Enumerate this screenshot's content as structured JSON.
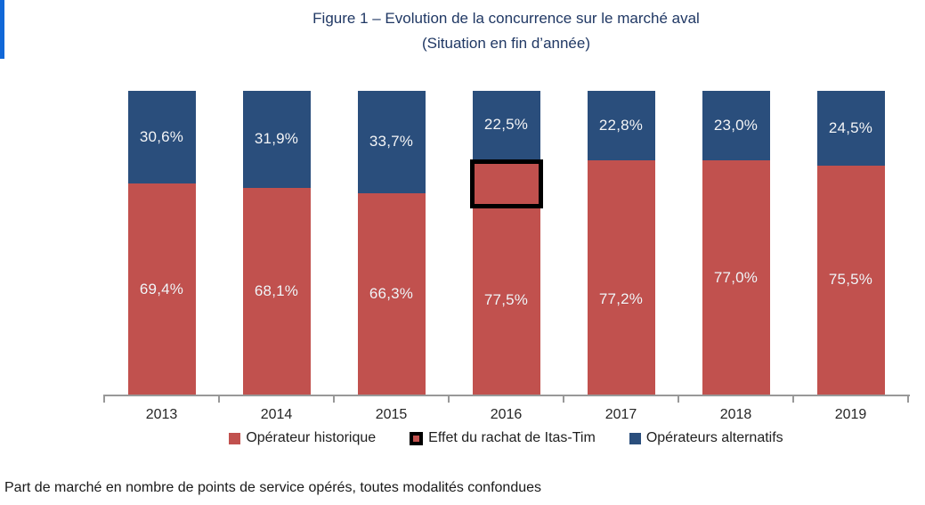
{
  "title": {
    "line1": "Figure 1 – Evolution de la concurrence sur le marché aval",
    "line2": "(Situation en fin d’année)"
  },
  "colors": {
    "historique_red": "#c1514e",
    "alternatifs_blue": "#2a4e7c",
    "annotation_black": "#000000",
    "title_navy": "#203864",
    "axis_gray": "#989898",
    "accent_blue": "#1168d8"
  },
  "chart_data": {
    "type": "bar",
    "stacked": true,
    "units": "%",
    "title": "Figure 1 – Evolution de la concurrence sur le marché aval (Situation en fin d’année)",
    "categories": [
      "2013",
      "2014",
      "2015",
      "2016",
      "2017",
      "2018",
      "2019"
    ],
    "series": [
      {
        "name": "Opérateur historique",
        "color": "#c1514e",
        "values": [
          69.4,
          68.1,
          66.3,
          77.5,
          77.2,
          77.0,
          75.5
        ],
        "labels": [
          "69,4%",
          "68,1%",
          "66,3%",
          "77,5%",
          "77,2%",
          "77,0%",
          "75,5%"
        ]
      },
      {
        "name": "Opérateurs alternatifs",
        "color": "#2a4e7c",
        "values": [
          30.6,
          31.9,
          33.7,
          22.5,
          22.8,
          23.0,
          24.5
        ],
        "labels": [
          "30,6%",
          "31,9%",
          "33,7%",
          "22,5%",
          "22,8%",
          "23,0%",
          "24,5%"
        ]
      }
    ],
    "annotation": {
      "label": "Effet du rachat de Itas-Tim",
      "category": "2016",
      "top_pct": 22.5,
      "height_pct": 16.1
    },
    "ylim": [
      0,
      100
    ],
    "grid": false,
    "legend_position": "bottom",
    "xlabel": "",
    "ylabel": ""
  },
  "legend": {
    "items": [
      {
        "label": "Opérateur historique",
        "marker": "red-square"
      },
      {
        "label": "Effet du rachat de Itas-Tim",
        "marker": "black-outlined-red-square"
      },
      {
        "label": "Opérateurs alternatifs",
        "marker": "blue-square"
      }
    ]
  },
  "caption": "Part de marché en nombre de points de service opérés, toutes modalités confondues"
}
